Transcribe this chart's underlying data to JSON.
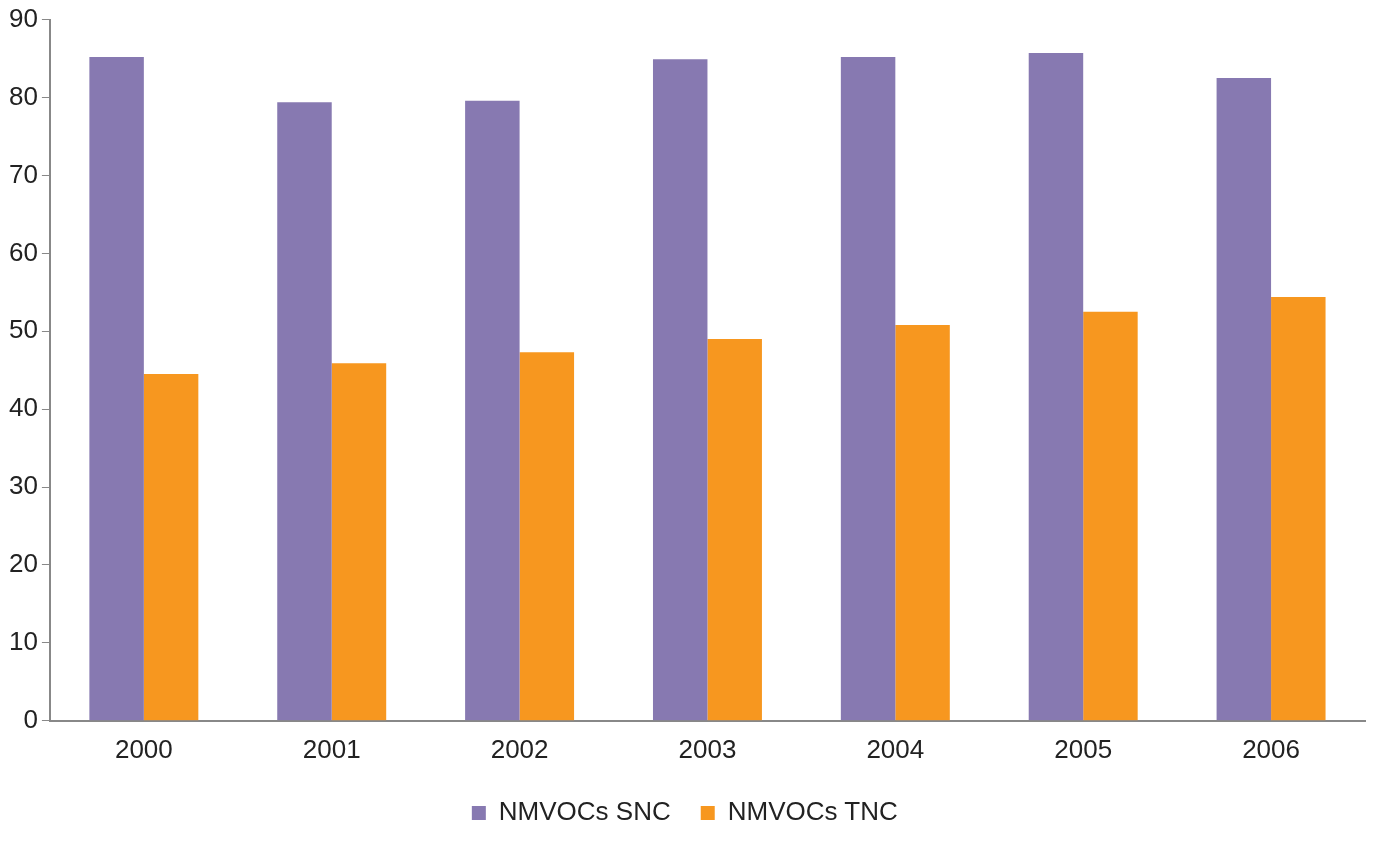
{
  "chart_data": {
    "type": "bar",
    "categories": [
      "2000",
      "2001",
      "2002",
      "2003",
      "2004",
      "2005",
      "2006"
    ],
    "series": [
      {
        "name": "NMVOCs SNC",
        "color": "#8779b1",
        "values": [
          85.2,
          79.4,
          79.6,
          84.9,
          85.2,
          85.7,
          82.5
        ]
      },
      {
        "name": "NMVOCs TNC",
        "color": "#f7971f",
        "values": [
          44.5,
          45.9,
          47.3,
          49.0,
          50.8,
          52.5,
          54.4
        ]
      }
    ],
    "ylim": [
      0,
      90
    ],
    "yticks": [
      0,
      10,
      20,
      30,
      40,
      50,
      60,
      70,
      80,
      90
    ],
    "grid": false,
    "legend": "bottom"
  }
}
